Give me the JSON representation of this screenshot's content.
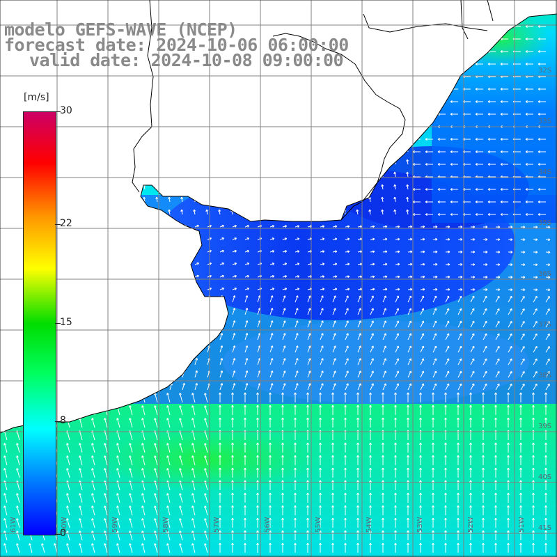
{
  "title": {
    "model": "modelo GEFS-WAVE (NCEP)",
    "forecast": "forecast date: 2024-10-06 06:00:00",
    "valid": "valid date: 2024-10-08 09:00:00"
  },
  "colorbar": {
    "unit": "[m/s]",
    "min": 0,
    "max": 30,
    "ticks": [
      "0",
      "8",
      "15",
      "22",
      "30"
    ],
    "tick_values": [
      0,
      8,
      15,
      22,
      30
    ],
    "colors": [
      "#0000ff",
      "#0080ff",
      "#00ffff",
      "#00ff60",
      "#00dd00",
      "#ffff00",
      "#ff9900",
      "#ff0000",
      "#cc0066"
    ]
  },
  "axes": {
    "lat_labels": [
      "32S",
      "33S",
      "34S",
      "35S",
      "36S",
      "37S",
      "38S",
      "39S",
      "40S",
      "41S"
    ],
    "lon_labels": [
      "61W",
      "60W",
      "59W",
      "58W",
      "57W",
      "56W",
      "55W",
      "54W",
      "53W",
      "52W",
      "51W"
    ]
  },
  "field": {
    "variable": "wind speed",
    "land_color": "#ffffff",
    "coast_color": "#000000",
    "grid_color": "#808080",
    "arrow_color": "#ffffff"
  }
}
